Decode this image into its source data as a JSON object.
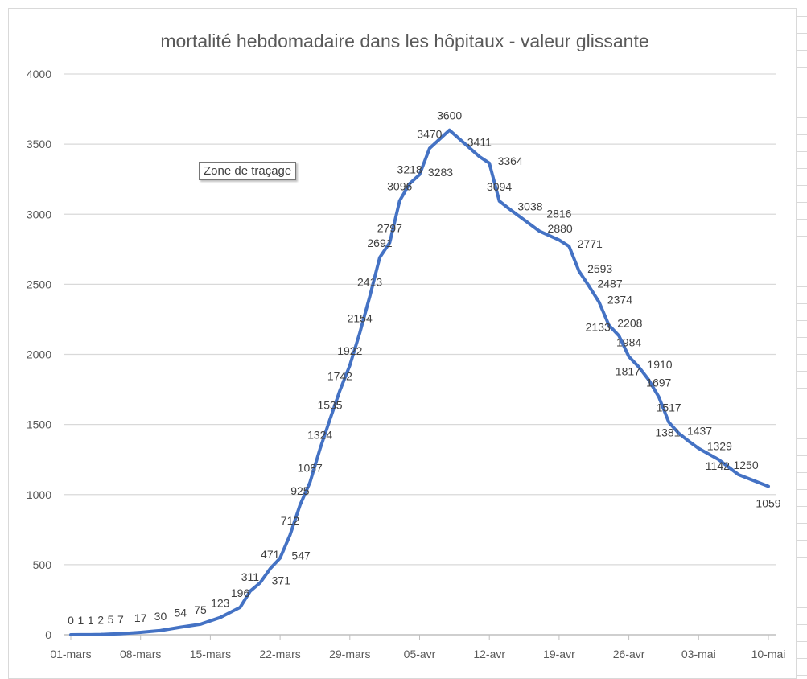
{
  "chart_data": {
    "type": "line",
    "title": "mortalité hebdomadaire dans les hôpitaux - valeur glissante",
    "xlabel": "",
    "ylabel": "",
    "ylim": [
      0,
      4000
    ],
    "yticks": [
      0,
      500,
      1000,
      1500,
      2000,
      2500,
      3000,
      3500,
      4000
    ],
    "xlim_days": [
      0,
      70
    ],
    "xticks": [
      {
        "day": 0,
        "label": "01-mars"
      },
      {
        "day": 7,
        "label": "08-mars"
      },
      {
        "day": 14,
        "label": "15-mars"
      },
      {
        "day": 21,
        "label": "22-mars"
      },
      {
        "day": 28,
        "label": "29-mars"
      },
      {
        "day": 35,
        "label": "05-avr"
      },
      {
        "day": 42,
        "label": "12-avr"
      },
      {
        "day": 49,
        "label": "19-avr"
      },
      {
        "day": 56,
        "label": "26-avr"
      },
      {
        "day": 63,
        "label": "03-mai"
      },
      {
        "day": 70,
        "label": "10-mai"
      }
    ],
    "grid": true,
    "legend": "none",
    "series": [
      {
        "name": "mortalité hebdomadaire",
        "color": "#4472c4",
        "x": [
          0,
          1,
          2,
          3,
          4,
          5,
          7,
          9,
          11,
          13,
          15,
          17,
          18,
          19,
          20,
          21,
          22,
          23,
          24,
          25,
          26,
          27,
          28,
          29,
          30,
          31,
          32,
          33,
          34,
          35,
          36,
          38,
          41,
          42,
          43,
          44,
          47,
          49,
          50,
          51,
          52,
          53,
          54,
          55,
          56,
          57,
          58,
          59,
          60,
          61,
          62,
          63,
          65,
          67,
          70
        ],
        "values": [
          0,
          1,
          1,
          2,
          5,
          7,
          17,
          30,
          54,
          75,
          123,
          196,
          311,
          371,
          471,
          547,
          712,
          925,
          1087,
          1324,
          1535,
          1742,
          1922,
          2154,
          2413,
          2691,
          2797,
          3096,
          3218,
          3283,
          3470,
          3600,
          3411,
          3364,
          3094,
          3038,
          2880,
          2816,
          2771,
          2593,
          2487,
          2374,
          2208,
          2133,
          1984,
          1910,
          1817,
          1697,
          1517,
          1437,
          1381,
          1329,
          1250,
          1142,
          1059
        ]
      }
    ]
  },
  "tooltip": "Zone de traçage"
}
